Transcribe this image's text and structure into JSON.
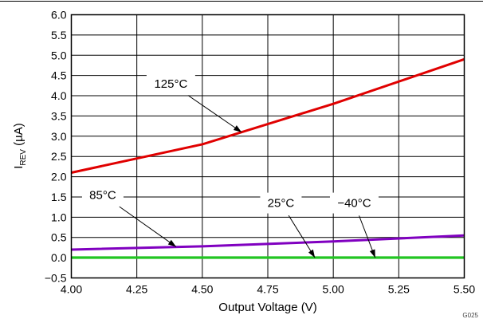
{
  "chart_data": {
    "type": "line",
    "xlabel": "Output Voltage (V)",
    "ylabel": "I",
    "ylabel_sub": "REV",
    "ylabel_suffix": " (µA)",
    "xlim": [
      4.0,
      5.5
    ],
    "ylim": [
      -0.5,
      6.0
    ],
    "grid": true,
    "x_ticks": [
      "4.00",
      "4.25",
      "4.50",
      "4.75",
      "5.00",
      "5.25",
      "5.50"
    ],
    "y_ticks": [
      "−0.5",
      "0.0",
      "0.5",
      "1.0",
      "1.5",
      "2.0",
      "2.5",
      "3.0",
      "3.5",
      "4.0",
      "4.5",
      "5.0",
      "5.5",
      "6.0"
    ],
    "series": [
      {
        "name": "125°C",
        "color": "#e00000",
        "x": [
          4.0,
          4.5,
          5.0,
          5.5
        ],
        "y": [
          2.1,
          2.8,
          3.8,
          4.9
        ]
      },
      {
        "name": "85°C",
        "color": "#8000c0",
        "x": [
          4.0,
          4.5,
          5.0,
          5.5
        ],
        "y": [
          0.2,
          0.28,
          0.4,
          0.55
        ]
      },
      {
        "name": "25°C",
        "color": "#22c522",
        "x": [
          4.0,
          5.5
        ],
        "y": [
          0.005,
          0.005
        ]
      },
      {
        "name": "−40°C",
        "color": "#22c522",
        "x": [
          4.0,
          5.5
        ],
        "y": [
          0.0,
          0.0
        ]
      }
    ],
    "annotations": [
      {
        "text": "125°C",
        "label_x": 4.38,
        "label_y": 4.3,
        "arrow_to_x": 4.65,
        "arrow_to_y": 3.1
      },
      {
        "text": "85°C",
        "label_x": 4.12,
        "label_y": 1.55,
        "arrow_to_x": 4.4,
        "arrow_to_y": 0.27
      },
      {
        "text": "25°C",
        "label_x": 4.8,
        "label_y": 1.35,
        "arrow_to_x": 4.93,
        "arrow_to_y": 0.0
      },
      {
        "text": "−40°C",
        "label_x": 5.08,
        "label_y": 1.35,
        "arrow_to_x": 5.16,
        "arrow_to_y": 0.0
      }
    ],
    "figure_id": "G025"
  }
}
